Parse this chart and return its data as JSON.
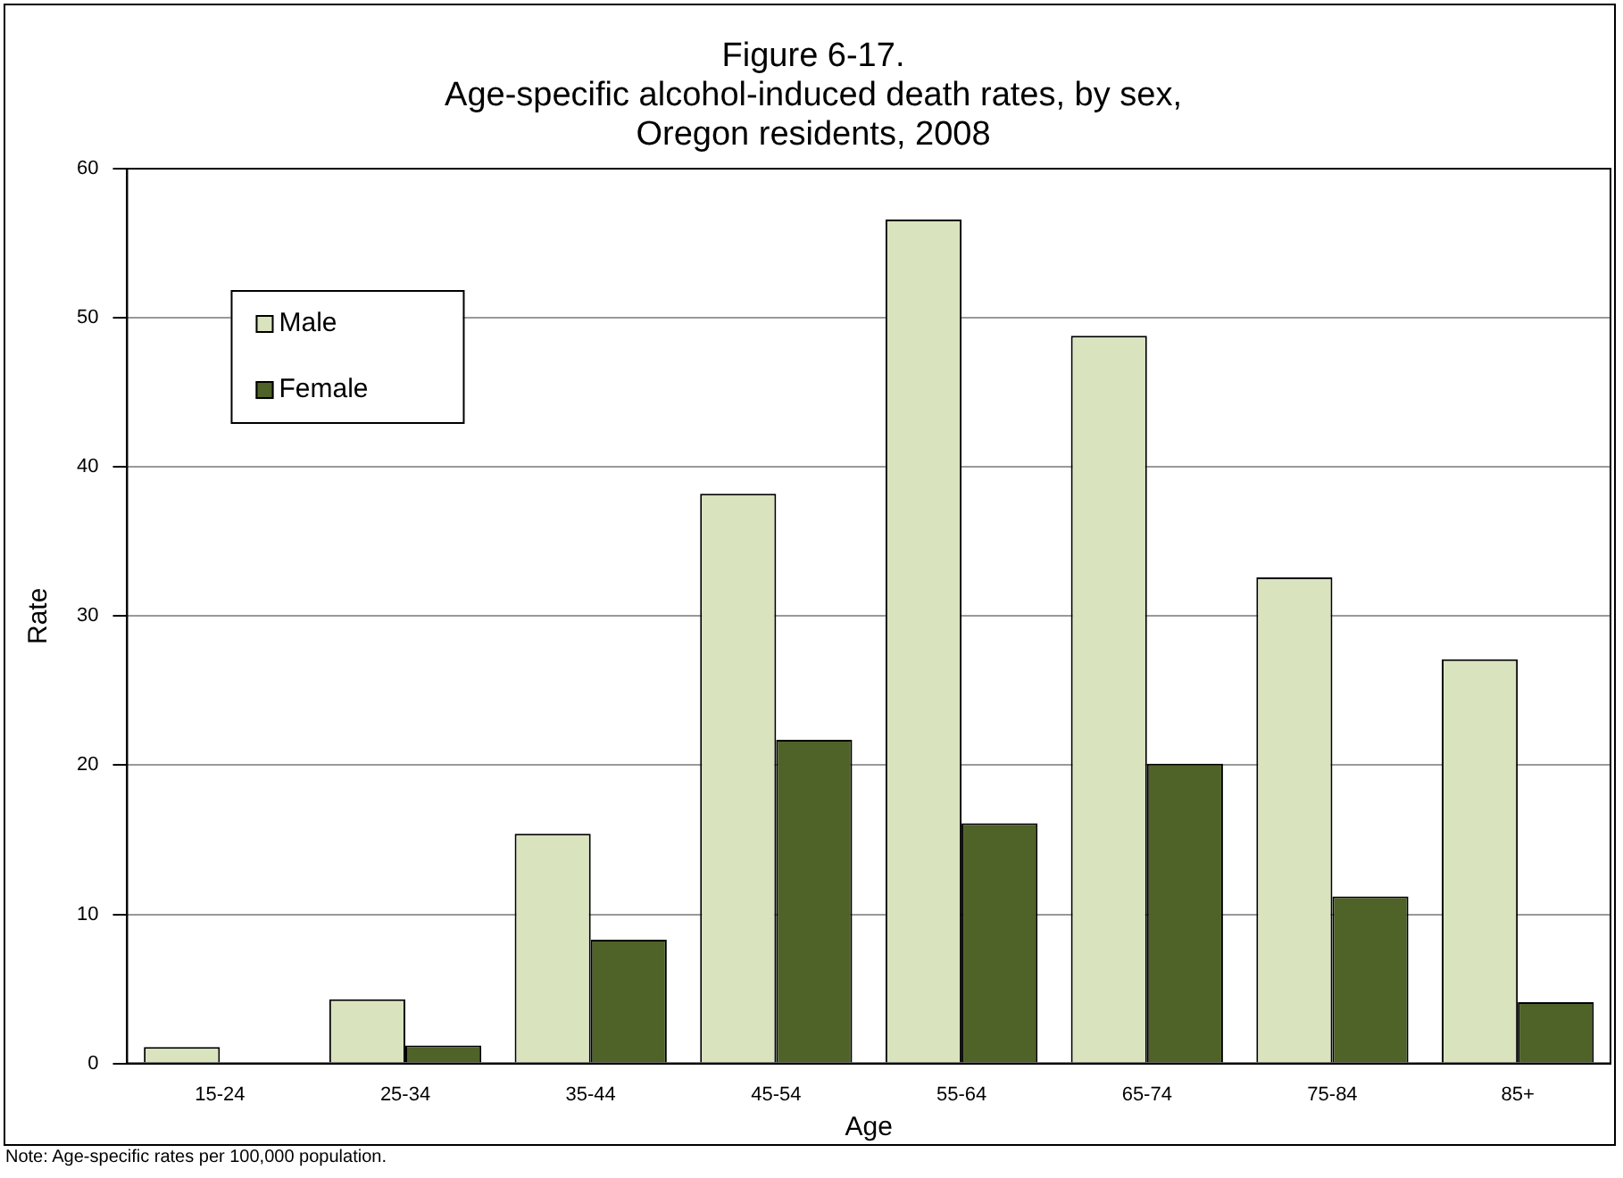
{
  "chart_data": {
    "type": "bar",
    "title": "Figure 6-17.\nAge-specific alcohol-induced death rates, by sex,\nOregon residents, 2008",
    "xlabel": "Age",
    "ylabel": "Rate",
    "categories": [
      "15-24",
      "25-34",
      "35-44",
      "45-54",
      "55-64",
      "65-74",
      "75-84",
      "85+"
    ],
    "series": [
      {
        "name": "Male",
        "color": "#d9e4bf",
        "values": [
          1.1,
          4.3,
          15.4,
          38.2,
          56.6,
          48.8,
          32.6,
          27.1
        ]
      },
      {
        "name": "Female",
        "color": "#4f6228",
        "values": [
          0,
          1.2,
          8.3,
          21.7,
          16.1,
          20.1,
          11.2,
          4.1
        ]
      }
    ],
    "ylim": [
      0,
      60
    ],
    "yticks": [
      0,
      10,
      20,
      30,
      40,
      50,
      60
    ],
    "grid": "y",
    "legend": "top left",
    "annotations": [
      "Note: Age-specific rates per 100,000 population."
    ]
  }
}
